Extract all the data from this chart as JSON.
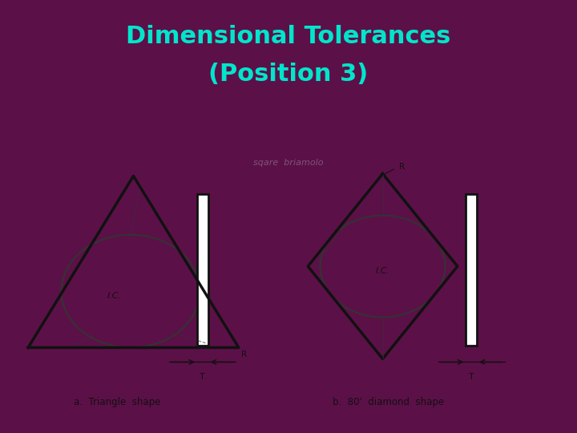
{
  "title_line1": "Dimensional Tolerances",
  "title_line2": "(Position 3)",
  "title_color": "#00E5CC",
  "title_bg": "#5C0040",
  "title_fontsize": 22,
  "bg_color": "#5C1048",
  "content_bg": "#D8D8D8",
  "separator_color1": "#00BBAA",
  "separator_color2": "#8B3070",
  "label_a": "a.  Triangle  shape",
  "label_b": "b.  80'  diamond  shape",
  "ic_label": "I.C.",
  "r_label": "R",
  "t_label": "T"
}
